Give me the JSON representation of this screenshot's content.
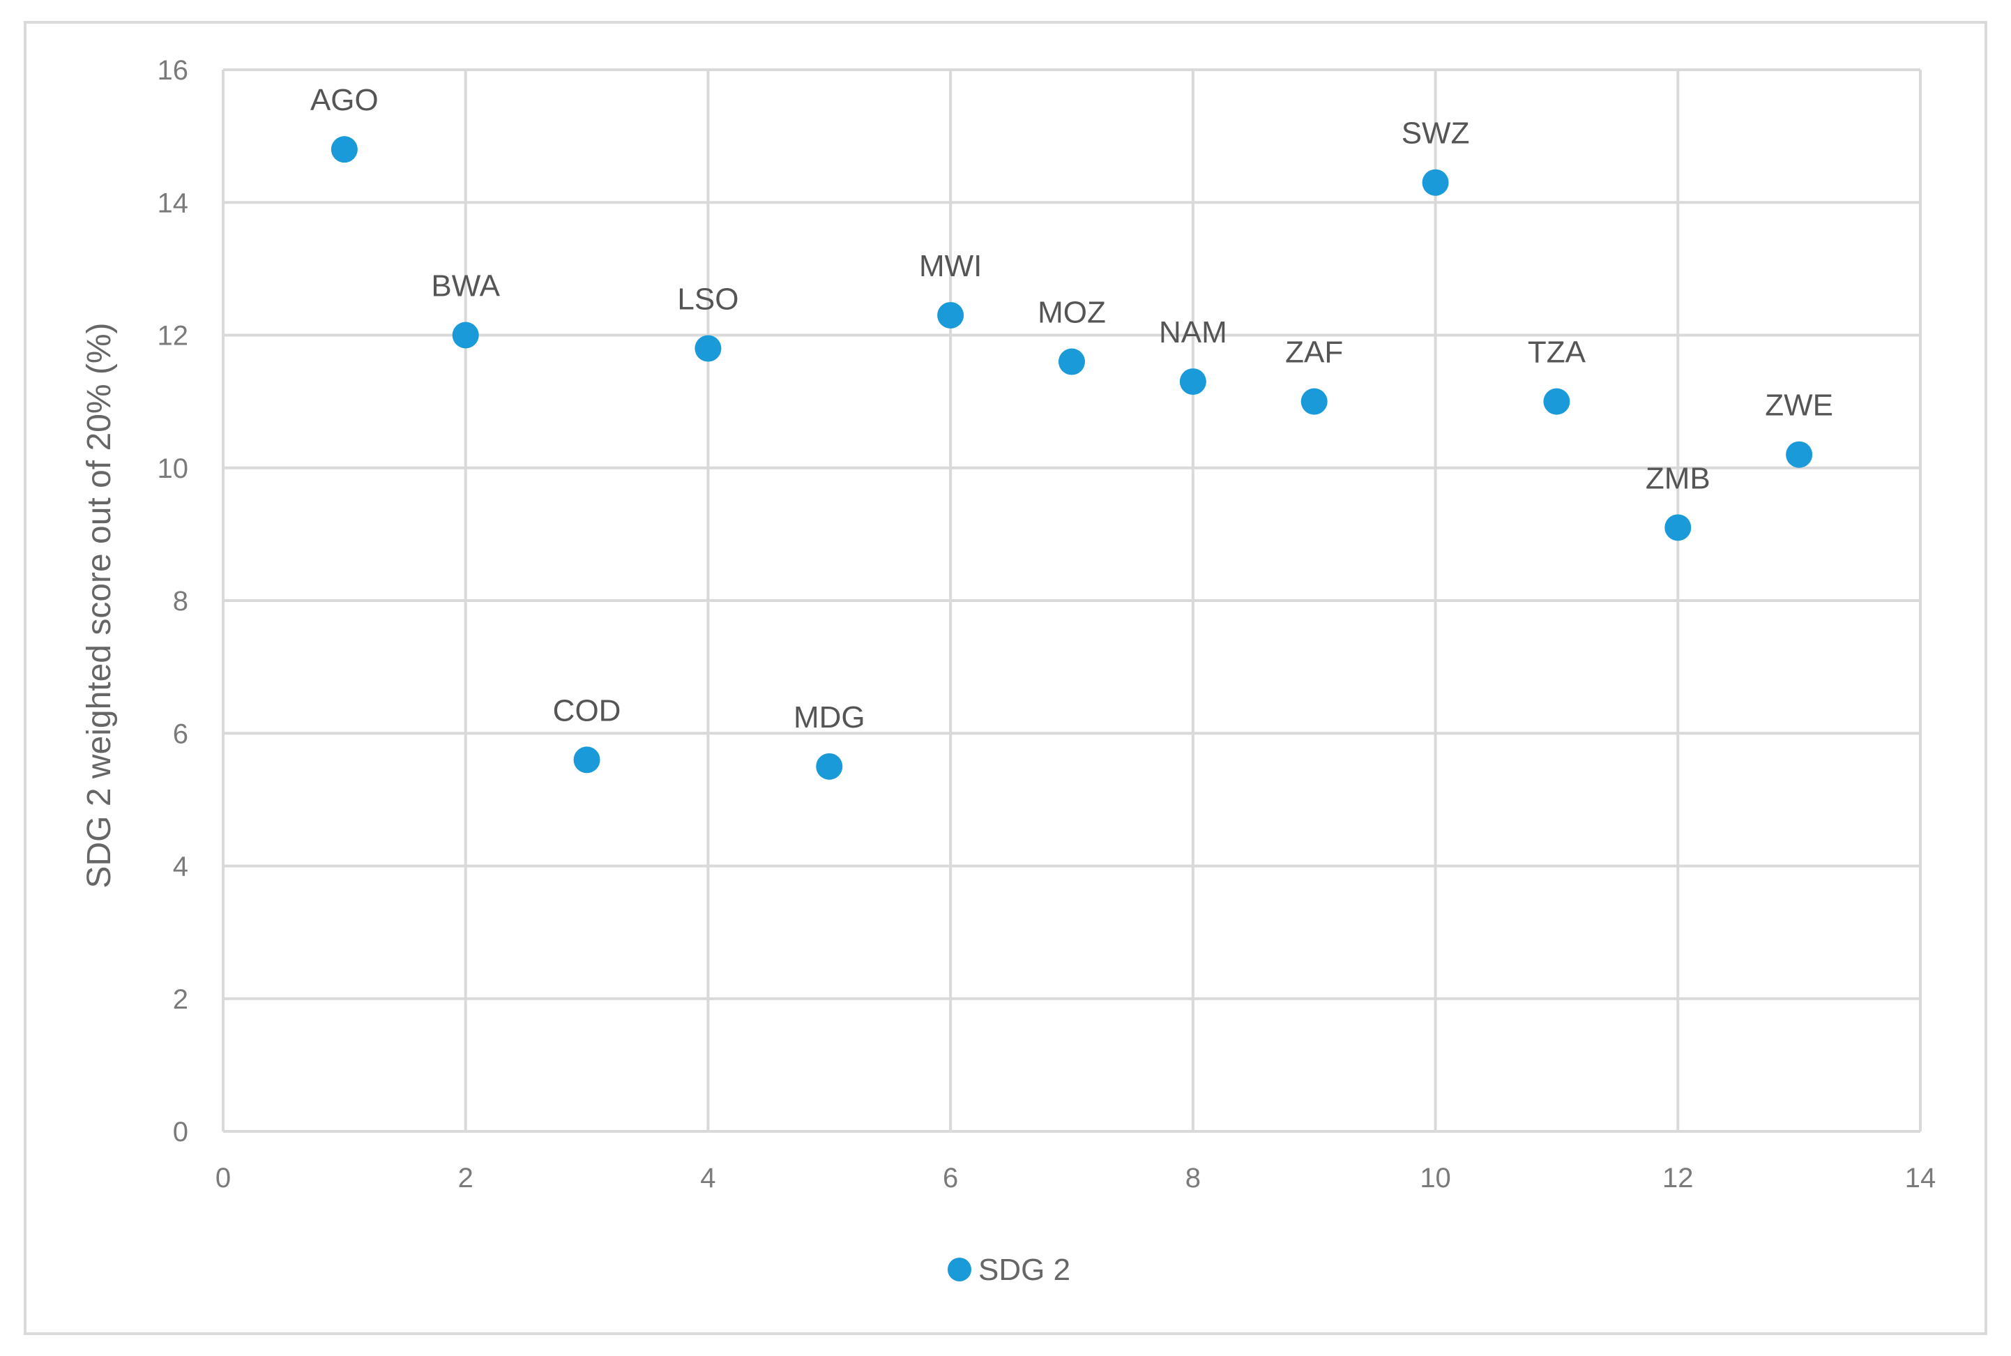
{
  "chart_data": {
    "type": "scatter",
    "title": "",
    "xlabel": "",
    "ylabel": "SDG 2 weighted score out of 20%  (%)",
    "xlim": [
      0,
      14
    ],
    "ylim": [
      0,
      16
    ],
    "x_ticks": [
      0,
      2,
      4,
      6,
      8,
      10,
      12,
      14
    ],
    "y_ticks": [
      0,
      2,
      4,
      6,
      8,
      10,
      12,
      14,
      16
    ],
    "grid": true,
    "legend_position": "bottom",
    "series": [
      {
        "name": "SDG 2",
        "color": "#1a9ad8",
        "points": [
          {
            "label": "AGO",
            "x": 1,
            "y": 14.8
          },
          {
            "label": "BWA",
            "x": 2,
            "y": 12.0
          },
          {
            "label": "COD",
            "x": 3,
            "y": 5.6
          },
          {
            "label": "LSO",
            "x": 4,
            "y": 11.8
          },
          {
            "label": "MDG",
            "x": 5,
            "y": 5.5
          },
          {
            "label": "MWI",
            "x": 6,
            "y": 12.3
          },
          {
            "label": "MOZ",
            "x": 7,
            "y": 11.6
          },
          {
            "label": "NAM",
            "x": 8,
            "y": 11.3
          },
          {
            "label": "ZAF",
            "x": 9,
            "y": 11.0
          },
          {
            "label": "SWZ",
            "x": 10,
            "y": 14.3
          },
          {
            "label": "TZA",
            "x": 11,
            "y": 11.0
          },
          {
            "label": "ZMB",
            "x": 12,
            "y": 9.1
          },
          {
            "label": "ZWE",
            "x": 13,
            "y": 10.2
          }
        ]
      }
    ],
    "colors": {
      "grid": "#d9d9d9",
      "frame": "#d9d9d9",
      "point": "#1a9ad8"
    }
  }
}
